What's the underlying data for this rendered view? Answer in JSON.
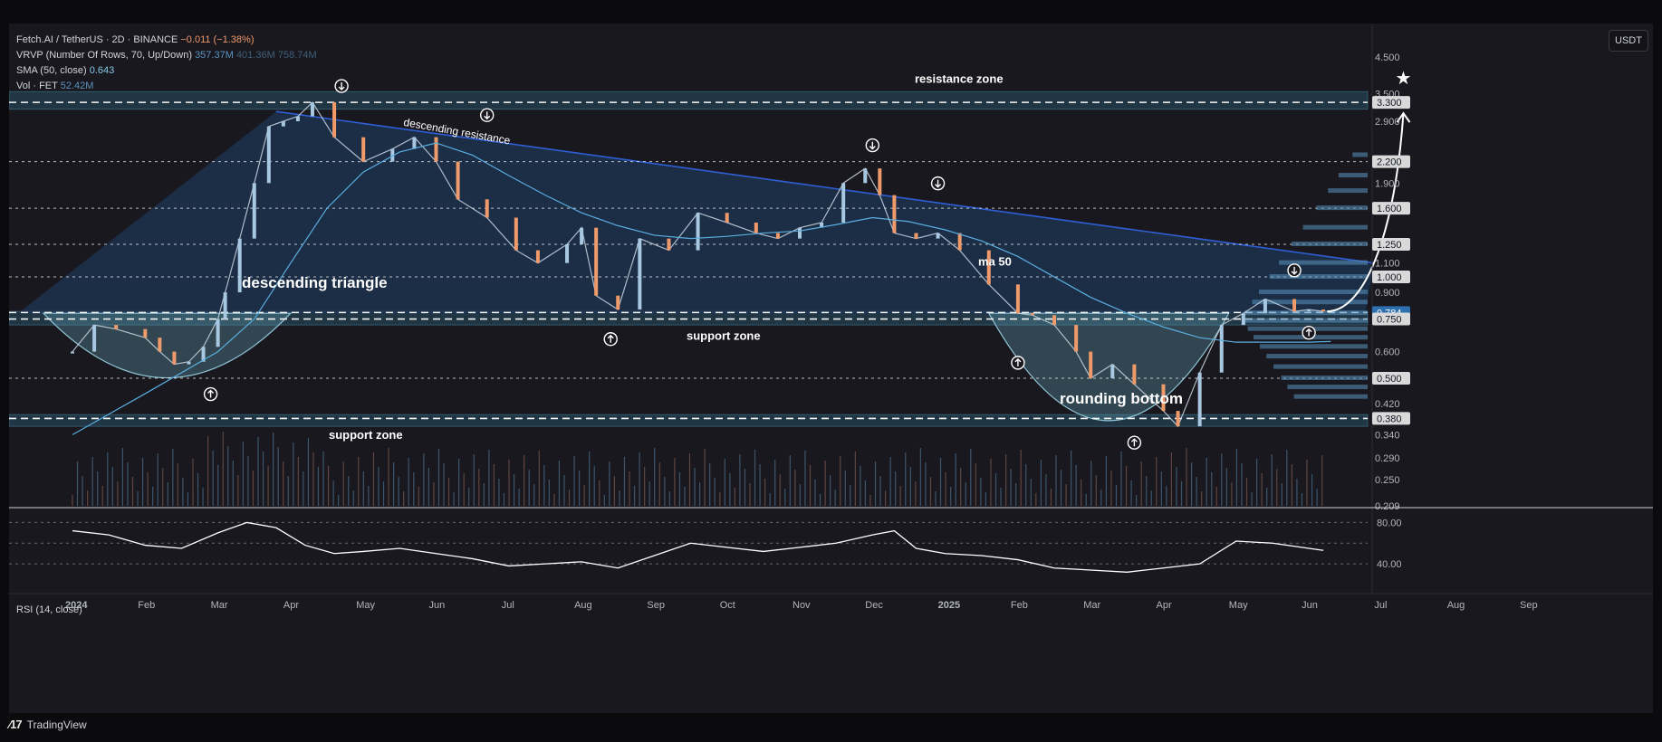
{
  "header": {
    "symbol_line": "Fetch.AI / TetherUS · 2D · BINANCE",
    "change": "−0.011 (−1.38%)",
    "vrvp_label": "VRVP (Number Of Rows, 70, Up/Down)",
    "vrvp_up": "357.37M",
    "vrvp_down": "401.36M",
    "vrvp_total": "758.74M",
    "sma_label": "SMA (50, close)",
    "sma_value": "0.643",
    "vol_label": "Vol · FET",
    "vol_value": "52.42M"
  },
  "currency": "USDT",
  "rsi_title": "RSI (14, close)",
  "footer_brand": "TradingView",
  "colors": {
    "background": "#1a181f",
    "up_candle": "#a8c7e0",
    "down_candle": "#ef9a6a",
    "triangle_fill": "#1e3454",
    "zone_fill": "#2a5a70",
    "resistance_line": "#2f5fd6",
    "sma_line": "#5aaee0"
  },
  "chart_data": {
    "type": "line",
    "title": "",
    "scale": "log",
    "price_axis_ticks": [
      "4.500",
      "3.500",
      "2.900",
      "2.200",
      "1.900",
      "1.600",
      "1.250",
      "1.100",
      "1.000",
      "0.900",
      "0.784",
      "0.750",
      "0.600",
      "0.500",
      "0.420",
      "0.380",
      "0.340",
      "0.290",
      "0.250",
      "0.209"
    ],
    "price_axis_highlight_labels": [
      "3.300",
      "2.200",
      "1.600",
      "1.250",
      "1.000",
      "0.784",
      "0.750",
      "0.500",
      "0.380"
    ],
    "time_axis_labels": [
      "2024",
      "Feb",
      "Mar",
      "Apr",
      "May",
      "Jun",
      "Jul",
      "Aug",
      "Sep",
      "Oct",
      "Nov",
      "Dec",
      "2025",
      "Feb",
      "Mar",
      "Apr",
      "May",
      "Jun",
      "Jul",
      "Aug",
      "Sep"
    ],
    "x_is_month_index_from_2024_01": true,
    "series": [
      {
        "type": "price_close_approx",
        "x": [
          0.0,
          0.3,
          0.6,
          1.0,
          1.2,
          1.4,
          1.6,
          1.8,
          2.0,
          2.1,
          2.3,
          2.5,
          2.7,
          2.9,
          3.1,
          3.3,
          3.6,
          4.0,
          4.4,
          4.7,
          5.0,
          5.3,
          5.7,
          6.1,
          6.4,
          6.8,
          7.0,
          7.2,
          7.5,
          7.8,
          8.2,
          8.6,
          9.0,
          9.4,
          9.7,
          10.0,
          10.3,
          10.6,
          10.9,
          11.1,
          11.3,
          11.6,
          11.9,
          12.2,
          12.6,
          13.0,
          13.2,
          13.5,
          13.8,
          14.0,
          14.3,
          14.6,
          15.0,
          15.2,
          15.5,
          15.8,
          16.1,
          16.4,
          16.8,
          17.0,
          17.2
        ],
        "values": [
          0.6,
          0.72,
          0.7,
          0.66,
          0.6,
          0.55,
          0.56,
          0.62,
          0.75,
          0.9,
          1.3,
          1.9,
          2.8,
          2.9,
          3.0,
          3.3,
          2.6,
          2.2,
          2.4,
          2.6,
          2.2,
          1.7,
          1.5,
          1.2,
          1.1,
          1.25,
          1.4,
          0.88,
          0.8,
          1.3,
          1.2,
          1.55,
          1.45,
          1.35,
          1.3,
          1.4,
          1.45,
          1.9,
          2.1,
          1.75,
          1.35,
          1.3,
          1.35,
          1.2,
          0.95,
          0.78,
          0.77,
          0.72,
          0.6,
          0.5,
          0.55,
          0.48,
          0.4,
          0.36,
          0.52,
          0.72,
          0.78,
          0.86,
          0.79,
          0.8,
          0.79
        ]
      },
      {
        "name": "SMA (50, close)",
        "x": [
          0.0,
          1.0,
          2.0,
          2.5,
          3.0,
          3.5,
          4.0,
          4.5,
          5.0,
          5.5,
          6.0,
          6.5,
          7.0,
          7.5,
          8.0,
          8.5,
          9.0,
          9.5,
          10.0,
          10.5,
          11.0,
          11.5,
          12.0,
          12.5,
          13.0,
          13.5,
          14.0,
          14.5,
          15.0,
          15.5,
          16.0,
          16.5,
          17.0,
          17.3
        ],
        "values": [
          0.34,
          0.45,
          0.6,
          0.75,
          1.1,
          1.6,
          2.05,
          2.35,
          2.5,
          2.3,
          2.0,
          1.75,
          1.55,
          1.42,
          1.33,
          1.3,
          1.32,
          1.35,
          1.37,
          1.43,
          1.5,
          1.46,
          1.38,
          1.28,
          1.15,
          1.0,
          0.87,
          0.78,
          0.71,
          0.66,
          0.64,
          0.64,
          0.64,
          0.643
        ]
      }
    ],
    "rsi": {
      "label": "RSI (14, close)",
      "ticks": [
        "80.00",
        "40.00"
      ],
      "x": [
        0.0,
        0.5,
        1.0,
        1.5,
        2.0,
        2.4,
        2.8,
        3.2,
        3.6,
        4.0,
        4.5,
        5.0,
        5.5,
        6.0,
        6.5,
        7.0,
        7.5,
        8.0,
        8.5,
        9.0,
        9.5,
        10.0,
        10.5,
        11.0,
        11.3,
        11.6,
        12.0,
        12.5,
        13.0,
        13.5,
        14.0,
        14.5,
        15.0,
        15.5,
        16.0,
        16.5,
        17.0,
        17.2
      ],
      "values": [
        72,
        68,
        58,
        55,
        70,
        80,
        75,
        58,
        50,
        52,
        55,
        50,
        45,
        38,
        40,
        42,
        36,
        48,
        60,
        56,
        52,
        56,
        60,
        68,
        72,
        55,
        50,
        48,
        44,
        36,
        34,
        32,
        36,
        40,
        62,
        60,
        55,
        53
      ]
    },
    "annotations": {
      "resistance_zone": "resistance zone",
      "descending_resistance": "descending resistance",
      "descending_triangle": "descending triangle",
      "support_zone_upper": "support zone",
      "support_zone_lower": "support zone",
      "ma_50": "ma 50",
      "rounding_bottom": "rounding bottom"
    },
    "zones": [
      {
        "name": "resistance zone",
        "low": 3.15,
        "high": 3.55
      },
      {
        "name": "support zone",
        "low": 0.72,
        "high": 0.79
      },
      {
        "name": "support zone",
        "low": 0.36,
        "high": 0.39
      }
    ],
    "descending_resistance_line": {
      "x": [
        2.8,
        17.9
      ],
      "values": [
        3.1,
        1.1
      ]
    },
    "dashed_levels": [
      3.3,
      2.2,
      1.6,
      1.25,
      1.0,
      0.784,
      0.75,
      0.5,
      0.38
    ],
    "swing_high_markers": [
      {
        "x": 3.7,
        "value": 3.6
      },
      {
        "x": 5.7,
        "value": 2.95
      },
      {
        "x": 11.0,
        "value": 2.4
      },
      {
        "x": 11.9,
        "value": 1.85
      },
      {
        "x": 16.8,
        "value": 1.02
      }
    ],
    "swing_low_markers": [
      {
        "x": 1.9,
        "value": 0.46
      },
      {
        "x": 7.4,
        "value": 0.67
      },
      {
        "x": 13.0,
        "value": 0.57
      },
      {
        "x": 14.6,
        "value": 0.33
      },
      {
        "x": 17.0,
        "value": 0.7
      }
    ],
    "projection_target": 3.3
  }
}
